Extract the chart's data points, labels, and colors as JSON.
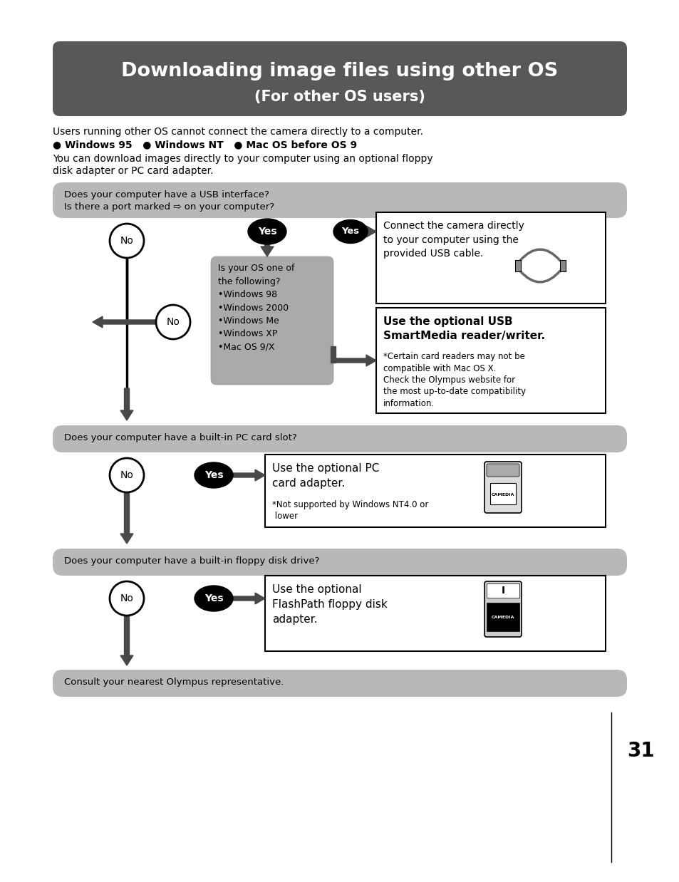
{
  "title_line1": "Downloading image files using other OS",
  "title_line2": "(For other OS users)",
  "title_bg": "#585858",
  "title_text_color": "#ffffff",
  "gray_box_bg": "#b8b8b8",
  "intro_line1": "Users running other OS cannot connect the camera directly to a computer.",
  "intro_bullets": "● Windows 95   ● Windows NT   ● Mac OS before OS 9",
  "intro_line2": "You can download images directly to your computer using an optional floppy",
  "intro_line3": "disk adapter or PC card adapter.",
  "q1_line1": "Does your computer have a USB interface?",
  "q1_line2": "Is there a port marked ⇨ on your computer?",
  "os_box_line1": "Is your OS one of",
  "os_box_line2": "the following?",
  "os_box_items": [
    "•Windows 98",
    "•Windows 2000",
    "•Windows Me",
    "•Windows XP",
    "•Mac OS 9/X"
  ],
  "usb_box1_text": "Connect the camera directly\nto your computer using the\nprovided USB cable.",
  "usb_box2_title": "Use the optional USB\nSmartMedia reader/writer.",
  "usb_box2_sub": "*Certain card readers may not be\ncompatible with Mac OS X.\nCheck the Olympus website for\nthe most up-to-date compatibility\ninformation.",
  "q2_text": "Does your computer have a built-in PC card slot?",
  "pc_box_title": "Use the optional PC\ncard adapter.",
  "pc_box_sub": "*Not supported by Windows NT4.0 or\n lower",
  "q3_text": "Does your computer have a built-in floppy disk drive?",
  "fp_box_title": "Use the optional\nFlashPath floppy disk\nadapter.",
  "final_text": "Consult your nearest Olympus representative.",
  "page_num": "31",
  "dark_arrow": "#484848",
  "mid_arrow": "#555555"
}
